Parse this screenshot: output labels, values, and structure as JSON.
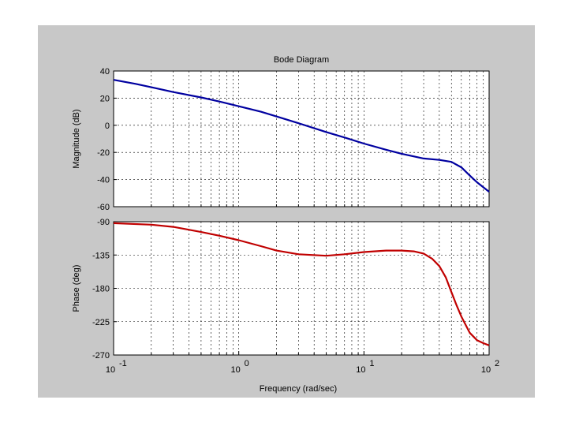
{
  "figure": {
    "background": "#c8c8c8",
    "plot_background": "#ffffff"
  },
  "chart_data": [
    {
      "type": "line",
      "title": "Bode Diagram",
      "xlabel": "",
      "ylabel": "Magnitude (dB)",
      "xscale": "log",
      "xlim": [
        0.1,
        100
      ],
      "ylim": [
        -60,
        40
      ],
      "yticks": [
        40,
        20,
        0,
        -20,
        -40,
        -60
      ],
      "grid": true,
      "series": [
        {
          "color": "#0000a0",
          "x": [
            0.1,
            0.15,
            0.2,
            0.3,
            0.5,
            0.7,
            1,
            1.5,
            2,
            3,
            5,
            7,
            10,
            15,
            20,
            30,
            40,
            50,
            60,
            70,
            80,
            100
          ],
          "y": [
            33.5,
            30.5,
            28,
            24.5,
            20.5,
            17.5,
            14,
            10,
            6.5,
            1.5,
            -5,
            -9,
            -13.5,
            -18,
            -21,
            -24.5,
            -25.5,
            -27,
            -31,
            -37,
            -42,
            -49
          ]
        }
      ]
    },
    {
      "type": "line",
      "xlabel": "Frequency (rad/sec)",
      "ylabel": "Phase (deg)",
      "xscale": "log",
      "xlim": [
        0.1,
        100
      ],
      "ylim": [
        -270,
        -90
      ],
      "yticks": [
        -90,
        -135,
        -180,
        -225,
        -270
      ],
      "xticks": [
        {
          "base": "10",
          "exp": "-1"
        },
        {
          "base": "10",
          "exp": "0"
        },
        {
          "base": "10",
          "exp": "1"
        },
        {
          "base": "10",
          "exp": "2"
        }
      ],
      "grid": true,
      "series": [
        {
          "color": "#c00000",
          "x": [
            0.1,
            0.2,
            0.3,
            0.5,
            0.7,
            1,
            1.5,
            2,
            3,
            5,
            7,
            10,
            15,
            20,
            25,
            30,
            35,
            40,
            45,
            50,
            55,
            60,
            70,
            80,
            90,
            100
          ],
          "y": [
            -92,
            -94,
            -97,
            -104,
            -109,
            -115,
            -123,
            -129,
            -134,
            -136,
            -134,
            -131,
            -129,
            -129,
            -130,
            -133,
            -140,
            -150,
            -165,
            -185,
            -203,
            -218,
            -240,
            -250,
            -254,
            -257
          ]
        }
      ]
    }
  ]
}
